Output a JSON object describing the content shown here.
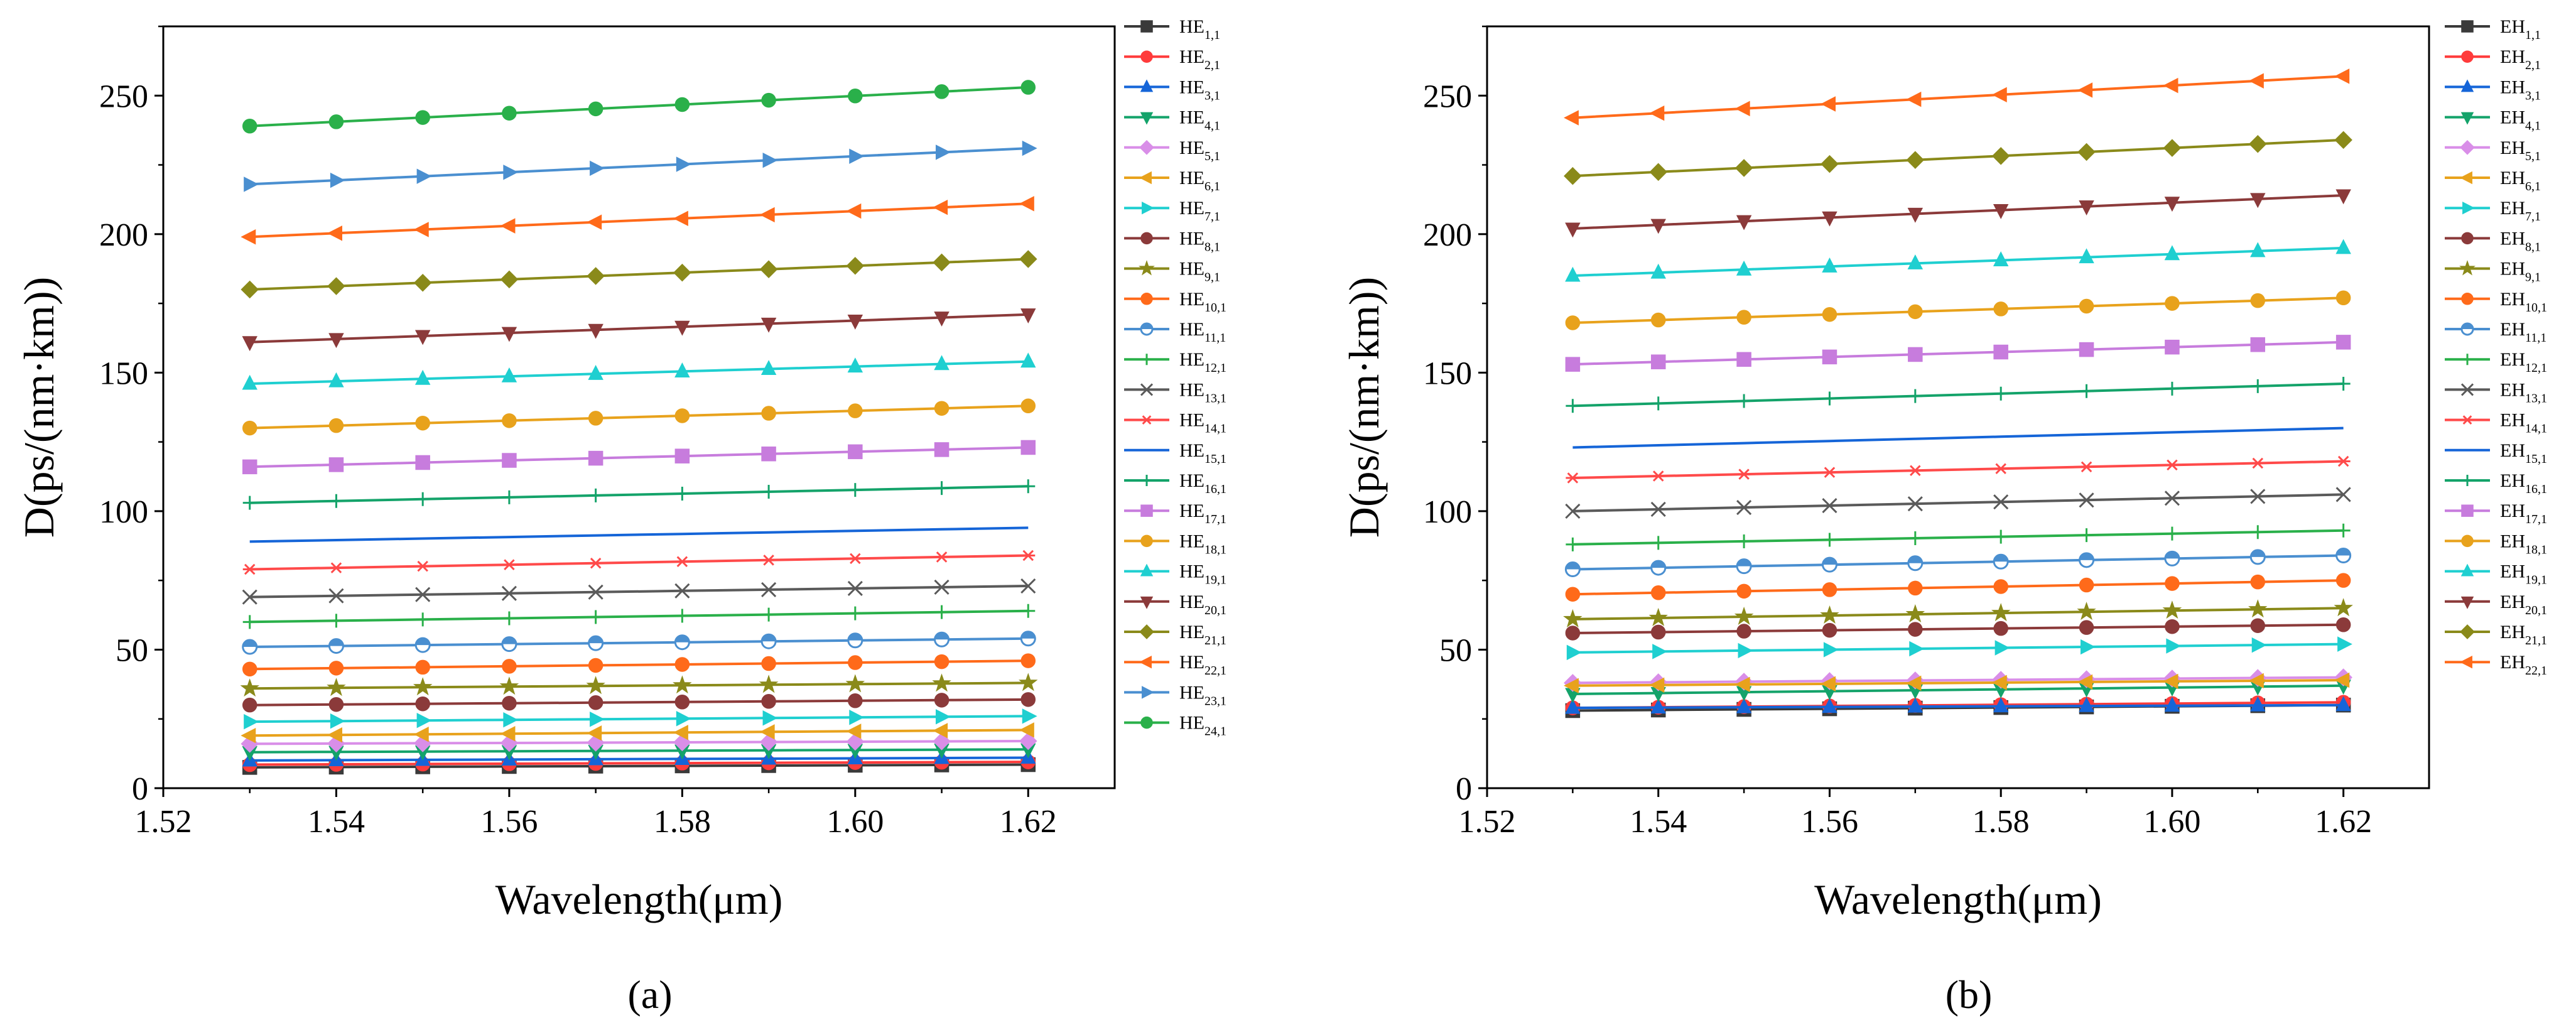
{
  "figure": {
    "panel_labels": [
      "(a)",
      "(b)"
    ]
  },
  "chart_data": [
    {
      "type": "line",
      "panel": "(a)",
      "title": "",
      "xlabel": "Wavelength(μm)",
      "ylabel": "D(ps/(nm·km))",
      "xlim": [
        1.52,
        1.63
      ],
      "ylim": [
        0,
        275
      ],
      "xticks": [
        1.52,
        1.54,
        1.56,
        1.58,
        1.6,
        1.62
      ],
      "xtick_labels": [
        "1.52",
        "1.54",
        "1.56",
        "1.58",
        "1.60",
        "1.62"
      ],
      "yticks": [
        0,
        50,
        100,
        150,
        200,
        250
      ],
      "ytick_labels": [
        "0",
        "50",
        "100",
        "150",
        "200",
        "250"
      ],
      "grid": false,
      "legend_position": "right-outside",
      "x": [
        1.53,
        1.54,
        1.55,
        1.56,
        1.57,
        1.58,
        1.59,
        1.6,
        1.61,
        1.62
      ],
      "series": [
        {
          "name": "HE",
          "sub": "1,1",
          "color": "#3a3a3a",
          "marker": "square",
          "start": 7.5,
          "end": 8.5
        },
        {
          "name": "HE",
          "sub": "2,1",
          "color": "#ff3b3b",
          "marker": "circle",
          "start": 8.5,
          "end": 9.5
        },
        {
          "name": "HE",
          "sub": "3,1",
          "color": "#1565d8",
          "marker": "triangle-up",
          "start": 10,
          "end": 11
        },
        {
          "name": "HE",
          "sub": "4,1",
          "color": "#14a36a",
          "marker": "triangle-down",
          "start": 13,
          "end": 14
        },
        {
          "name": "HE",
          "sub": "5,1",
          "color": "#d98ee8",
          "marker": "diamond",
          "start": 16,
          "end": 17
        },
        {
          "name": "HE",
          "sub": "6,1",
          "color": "#e8a21c",
          "marker": "triangle-left",
          "start": 19,
          "end": 21
        },
        {
          "name": "HE",
          "sub": "7,1",
          "color": "#1fcfd0",
          "marker": "triangle-right",
          "start": 24,
          "end": 26
        },
        {
          "name": "HE",
          "sub": "8,1",
          "color": "#8b3a3a",
          "marker": "circle",
          "start": 30,
          "end": 32
        },
        {
          "name": "HE",
          "sub": "9,1",
          "color": "#8a8a1a",
          "marker": "star",
          "start": 36,
          "end": 38
        },
        {
          "name": "HE",
          "sub": "10,1",
          "color": "#ff6a1a",
          "marker": "circle",
          "start": 43,
          "end": 46
        },
        {
          "name": "HE",
          "sub": "11,1",
          "color": "#4a8fd0",
          "marker": "circle-split",
          "start": 51,
          "end": 54
        },
        {
          "name": "HE",
          "sub": "12,1",
          "color": "#2ab04a",
          "marker": "plus",
          "start": 60,
          "end": 64
        },
        {
          "name": "HE",
          "sub": "13,1",
          "color": "#5a5a5a",
          "marker": "cross",
          "start": 69,
          "end": 73
        },
        {
          "name": "HE",
          "sub": "14,1",
          "color": "#ff4a4a",
          "marker": "asterisk",
          "start": 79,
          "end": 84
        },
        {
          "name": "HE",
          "sub": "15,1",
          "color": "#1565d8",
          "marker": "none",
          "start": 89,
          "end": 94
        },
        {
          "name": "HE",
          "sub": "16,1",
          "color": "#14a36a",
          "marker": "plus",
          "start": 103,
          "end": 109
        },
        {
          "name": "HE",
          "sub": "17,1",
          "color": "#c77cdd",
          "marker": "square",
          "start": 116,
          "end": 123
        },
        {
          "name": "HE",
          "sub": "18,1",
          "color": "#e8a21c",
          "marker": "circle",
          "start": 130,
          "end": 138
        },
        {
          "name": "HE",
          "sub": "19,1",
          "color": "#1fcfd0",
          "marker": "triangle-up",
          "start": 146,
          "end": 154
        },
        {
          "name": "HE",
          "sub": "20,1",
          "color": "#8b3a3a",
          "marker": "triangle-down",
          "start": 161,
          "end": 171
        },
        {
          "name": "HE",
          "sub": "21,1",
          "color": "#8a8a1a",
          "marker": "diamond",
          "start": 180,
          "end": 191
        },
        {
          "name": "HE",
          "sub": "22,1",
          "color": "#ff6a1a",
          "marker": "triangle-left",
          "start": 199,
          "end": 211
        },
        {
          "name": "HE",
          "sub": "23,1",
          "color": "#4a8fd0",
          "marker": "triangle-right",
          "start": 218,
          "end": 231
        },
        {
          "name": "HE",
          "sub": "24,1",
          "color": "#2ab04a",
          "marker": "circle",
          "start": 239,
          "end": 253
        }
      ]
    },
    {
      "type": "line",
      "panel": "(b)",
      "title": "",
      "xlabel": "Wavelength(μm)",
      "ylabel": "D(ps/(nm·km))",
      "xlim": [
        1.52,
        1.63
      ],
      "ylim": [
        0,
        275
      ],
      "xticks": [
        1.52,
        1.54,
        1.56,
        1.58,
        1.6,
        1.62
      ],
      "xtick_labels": [
        "1.52",
        "1.54",
        "1.56",
        "1.58",
        "1.60",
        "1.62"
      ],
      "yticks": [
        0,
        50,
        100,
        150,
        200,
        250
      ],
      "ytick_labels": [
        "0",
        "50",
        "100",
        "150",
        "200",
        "250"
      ],
      "grid": false,
      "legend_position": "right-outside",
      "x": [
        1.53,
        1.54,
        1.55,
        1.56,
        1.57,
        1.58,
        1.59,
        1.6,
        1.61,
        1.62
      ],
      "series": [
        {
          "name": "EH",
          "sub": "1,1",
          "color": "#3a3a3a",
          "marker": "square",
          "start": 28,
          "end": 30
        },
        {
          "name": "EH",
          "sub": "2,1",
          "color": "#ff3b3b",
          "marker": "circle",
          "start": 29,
          "end": 31
        },
        {
          "name": "EH",
          "sub": "3,1",
          "color": "#1565d8",
          "marker": "triangle-up",
          "start": 29,
          "end": 30
        },
        {
          "name": "EH",
          "sub": "4,1",
          "color": "#14a36a",
          "marker": "triangle-down",
          "start": 34,
          "end": 37
        },
        {
          "name": "EH",
          "sub": "5,1",
          "color": "#d98ee8",
          "marker": "diamond",
          "start": 38,
          "end": 40
        },
        {
          "name": "EH",
          "sub": "6,1",
          "color": "#e8a21c",
          "marker": "triangle-left",
          "start": 37,
          "end": 39
        },
        {
          "name": "EH",
          "sub": "7,1",
          "color": "#1fcfd0",
          "marker": "triangle-right",
          "start": 49,
          "end": 52
        },
        {
          "name": "EH",
          "sub": "8,1",
          "color": "#8b3a3a",
          "marker": "circle",
          "start": 56,
          "end": 59
        },
        {
          "name": "EH",
          "sub": "9,1",
          "color": "#8a8a1a",
          "marker": "star",
          "start": 61,
          "end": 65
        },
        {
          "name": "EH",
          "sub": "10,1",
          "color": "#ff6a1a",
          "marker": "circle",
          "start": 70,
          "end": 75
        },
        {
          "name": "EH",
          "sub": "11,1",
          "color": "#4a8fd0",
          "marker": "circle-split",
          "start": 79,
          "end": 84
        },
        {
          "name": "EH",
          "sub": "12,1",
          "color": "#2ab04a",
          "marker": "plus",
          "start": 88,
          "end": 93
        },
        {
          "name": "EH",
          "sub": "13,1",
          "color": "#5a5a5a",
          "marker": "cross",
          "start": 100,
          "end": 106
        },
        {
          "name": "EH",
          "sub": "14,1",
          "color": "#ff4a4a",
          "marker": "asterisk",
          "start": 112,
          "end": 118
        },
        {
          "name": "EH",
          "sub": "15,1",
          "color": "#1565d8",
          "marker": "none",
          "start": 123,
          "end": 130
        },
        {
          "name": "EH",
          "sub": "16,1",
          "color": "#14a36a",
          "marker": "plus",
          "start": 138,
          "end": 146
        },
        {
          "name": "EH",
          "sub": "17,1",
          "color": "#c77cdd",
          "marker": "square",
          "start": 153,
          "end": 161
        },
        {
          "name": "EH",
          "sub": "18,1",
          "color": "#e8a21c",
          "marker": "circle",
          "start": 168,
          "end": 177
        },
        {
          "name": "EH",
          "sub": "19,1",
          "color": "#1fcfd0",
          "marker": "triangle-up",
          "start": 185,
          "end": 195
        },
        {
          "name": "EH",
          "sub": "20,1",
          "color": "#8b3a3a",
          "marker": "triangle-down",
          "start": 202,
          "end": 214
        },
        {
          "name": "EH",
          "sub": "21,1",
          "color": "#8a8a1a",
          "marker": "diamond",
          "start": 221,
          "end": 234
        },
        {
          "name": "EH",
          "sub": "22,1",
          "color": "#ff6a1a",
          "marker": "triangle-left",
          "start": 242,
          "end": 257
        }
      ]
    }
  ]
}
